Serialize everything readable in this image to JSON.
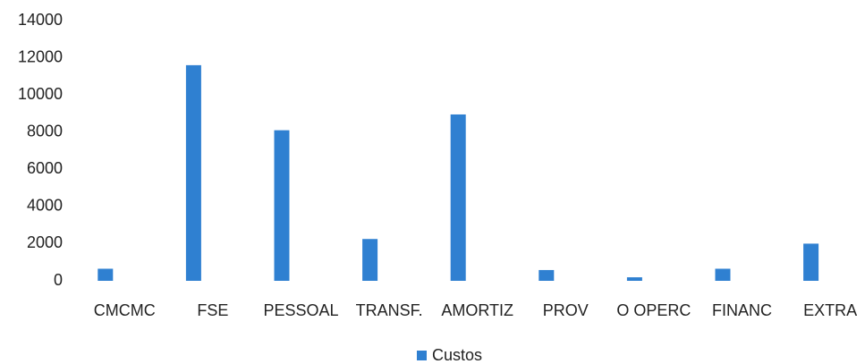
{
  "chart_data": {
    "type": "bar",
    "categories": [
      "CMCMC",
      "FSE",
      "PESSOAL",
      "TRANSF.",
      "AMORTIZ",
      "PROV",
      "O OPERC",
      "FINANC",
      "EXTRA"
    ],
    "series": [
      {
        "name": "Custos",
        "color": "#2f80d1",
        "values": [
          650,
          11600,
          8100,
          2250,
          8950,
          580,
          190,
          650,
          2000
        ]
      }
    ],
    "ylim": [
      0,
      14000
    ],
    "yticks": [
      0,
      2000,
      4000,
      6000,
      8000,
      10000,
      12000,
      14000
    ],
    "grid": false,
    "legend": "bottom"
  }
}
